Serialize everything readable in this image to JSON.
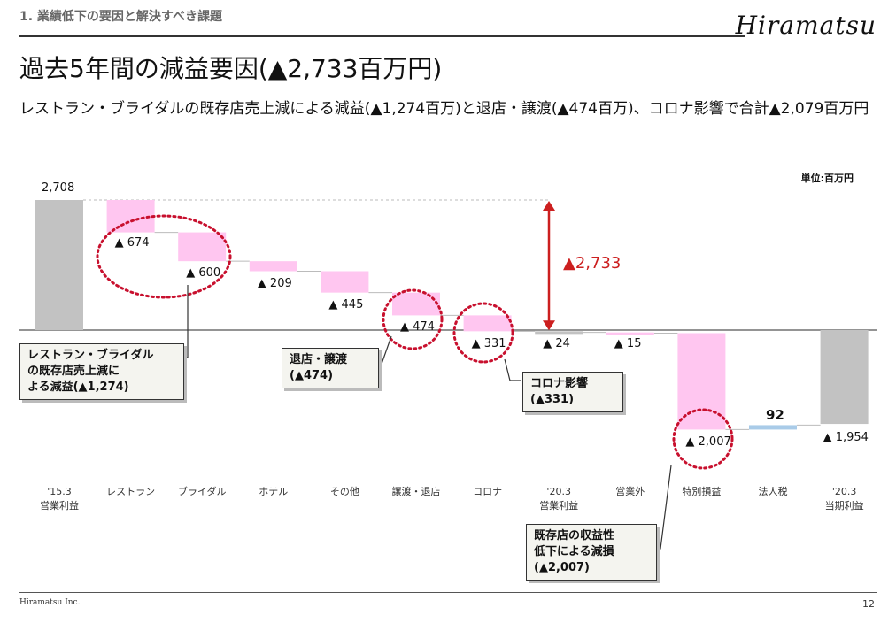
{
  "header": {
    "section_title": "1. 業績低下の要因と解決すべき課題",
    "brand": "Hiramatsu"
  },
  "slide": {
    "title": "過去5年間の減益要因(▲2,733百万円)",
    "subtitle": "レストラン・ブライダルの既存店売上減による減益(▲1,274百万)と退店・譲渡(▲474百万)、コロナ影響で合計▲2,079百万円",
    "unit_label": "単位:百万円"
  },
  "chart_data": {
    "type": "waterfall",
    "categories": [
      "'15.3\n営業利益",
      "レストラン",
      "ブライダル",
      "ホテル",
      "その他",
      "譲渡・退店",
      "コロナ",
      "'20.3\n営業利益",
      "営業外",
      "特別損益",
      "法人税",
      "'20.3\n当期利益"
    ],
    "values": [
      2708,
      -674,
      -600,
      -209,
      -445,
      -474,
      -331,
      -24,
      -15,
      -2007,
      92,
      -1954
    ],
    "kinds": [
      "total",
      "delta",
      "delta",
      "delta",
      "delta",
      "delta",
      "delta",
      "total",
      "delta",
      "delta",
      "delta",
      "total"
    ],
    "value_labels": [
      "2,708",
      "▲ 674",
      "▲ 600",
      "▲ 209",
      "▲ 445",
      "▲ 474",
      "▲ 331",
      "▲ 24",
      "▲ 15",
      "▲ 2,007",
      "92",
      "▲ 1,954"
    ],
    "total_decline": {
      "label": "▲2,733",
      "from": 2708,
      "to": -24
    },
    "ylim": [
      -2400,
      3000
    ],
    "colors": {
      "total": "#c2c2c2",
      "decrease": "#ffc6f0",
      "increase": "#a9cbe8",
      "accent": "#cc1f1f",
      "circle": "#c8102e"
    }
  },
  "callouts": {
    "existing_stores": "レストラン・ブライダル\nの既存店売上減に\nよる減益(▲1,274)",
    "closure": "退店・譲渡\n(▲474)",
    "corona": "コロナ影響\n(▲331)",
    "profitability": "既存店の収益性\n低下による減損\n(▲2,007)"
  },
  "footer": {
    "company": "Hiramatsu Inc.",
    "page_number": "12"
  }
}
